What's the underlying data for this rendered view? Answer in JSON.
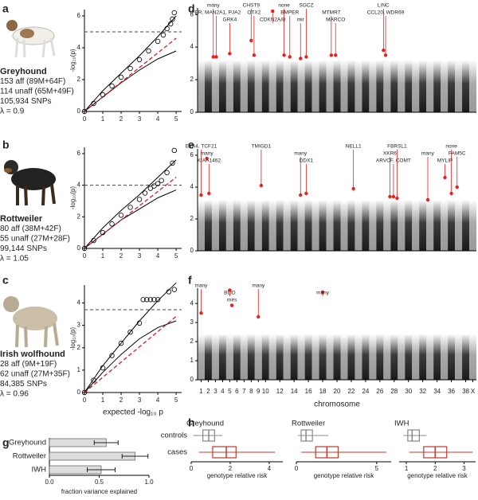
{
  "chart_data": [
    {
      "type": "qq",
      "letter": "a",
      "breed": "Greyhound",
      "info": [
        "153 aff (89M+64F)",
        "114 unaff (65M+49F)",
        "105,934 SNPs",
        "λ = 0.9"
      ],
      "ylabel": "-log₁₀(p)",
      "xlim": [
        0,
        5.3
      ],
      "ylim": [
        0,
        6.4
      ],
      "xticks": [
        0,
        1,
        2,
        3,
        4,
        5
      ],
      "yticks": [
        0,
        2,
        4,
        6
      ],
      "threshold": 5,
      "observed": {
        "x": [
          0,
          0.5,
          1,
          1.5,
          2,
          2.5,
          3,
          3.5,
          4,
          4.3,
          4.5,
          4.7,
          4.8,
          4.9
        ],
        "values": [
          0,
          0.5,
          1.05,
          1.6,
          2.15,
          2.7,
          3.25,
          3.8,
          4.4,
          4.8,
          5.2,
          5.5,
          5.8,
          6.2
        ]
      },
      "expected": {
        "x": [
          0,
          5
        ],
        "values": [
          0,
          4.6
        ],
        "color": "#d62020"
      },
      "ci_upper": {
        "x": [
          0,
          1,
          2,
          3,
          4,
          5
        ],
        "values": [
          0,
          1.3,
          2.4,
          3.5,
          4.7,
          6.0
        ]
      },
      "ci_lower": {
        "x": [
          0,
          1,
          2,
          3,
          4,
          5
        ],
        "values": [
          0,
          0.9,
          1.8,
          2.6,
          3.3,
          3.8
        ]
      }
    },
    {
      "type": "qq",
      "letter": "b",
      "breed": "Rottweiler",
      "info": [
        "80 aff (38M+42F)",
        "55 unaff (27M+28F)",
        "99,144 SNPs",
        "λ = 1.05"
      ],
      "ylabel": "-log₁₀(p)",
      "xlim": [
        0,
        5.3
      ],
      "ylim": [
        0,
        6.4
      ],
      "xticks": [
        0,
        1,
        2,
        3,
        4,
        5
      ],
      "yticks": [
        0,
        2,
        4,
        6
      ],
      "threshold": 4,
      "observed": {
        "x": [
          0,
          0.5,
          1,
          1.5,
          2,
          2.5,
          3,
          3.3,
          3.6,
          3.8,
          4.0,
          4.2,
          4.5,
          4.8,
          4.9
        ],
        "values": [
          0,
          0.5,
          1.0,
          1.55,
          2.1,
          2.6,
          3.1,
          3.5,
          3.8,
          3.95,
          4.1,
          4.3,
          4.8,
          5.4,
          6.2
        ]
      },
      "expected": {
        "x": [
          0,
          5
        ],
        "values": [
          0,
          4.5
        ],
        "color": "#d62020"
      },
      "ci_upper": {
        "x": [
          0,
          1,
          2,
          3,
          4,
          5
        ],
        "values": [
          0,
          1.3,
          2.4,
          3.4,
          4.5,
          5.6
        ]
      },
      "ci_lower": {
        "x": [
          0,
          1,
          2,
          3,
          4,
          5
        ],
        "values": [
          0,
          0.9,
          1.8,
          2.5,
          3.2,
          3.7
        ]
      }
    },
    {
      "type": "qq",
      "letter": "c",
      "breed": "Irish wolfhound",
      "info": [
        "28 aff (9M+19F)",
        "62 unaff (27M+35F)",
        "84,385 SNPs",
        "λ = 0.96"
      ],
      "ylabel": "-log₁₀(p)",
      "xlabel": "expected -log₁₀ p",
      "xlim": [
        0,
        5.3
      ],
      "ylim": [
        0,
        4.8
      ],
      "xticks": [
        0,
        1,
        2,
        3,
        4,
        5
      ],
      "yticks": [
        0,
        1,
        2,
        3,
        4
      ],
      "threshold": 3.7,
      "observed": {
        "x": [
          0,
          0.5,
          1,
          1.5,
          2,
          2.5,
          3,
          3.2,
          3.4,
          3.6,
          3.8,
          4.0,
          4.6,
          4.9
        ],
        "values": [
          0,
          0.55,
          1.1,
          1.65,
          2.2,
          2.7,
          3.1,
          4.15,
          4.15,
          4.15,
          4.15,
          4.15,
          4.5,
          4.6
        ]
      },
      "expected": {
        "x": [
          0,
          5
        ],
        "values": [
          0,
          3.4
        ],
        "color": "#d62020"
      },
      "ci_upper": {
        "x": [
          0,
          1,
          2,
          3,
          4,
          5
        ],
        "values": [
          0,
          1.2,
          2.2,
          3.2,
          4.1,
          4.9
        ]
      },
      "ci_lower": {
        "x": [
          0,
          1,
          2,
          3,
          4,
          5
        ],
        "values": [
          0,
          0.9,
          1.7,
          2.4,
          2.9,
          3.2
        ]
      }
    },
    {
      "type": "manhattan",
      "letter": "d",
      "xlim": [
        0.5,
        39.5
      ],
      "ylim": [
        0,
        6.4
      ],
      "yticks": [
        0,
        2,
        4,
        6
      ],
      "color": "#e8211d",
      "peaks": [
        {
          "chrom": 2.7,
          "value": 3.4,
          "label": "many"
        },
        {
          "chrom": 3.1,
          "value": 3.4,
          "label": "FER, MAN2A1, PJA2"
        },
        {
          "chrom": 5,
          "value": 3.6,
          "label": "GRK4"
        },
        {
          "chrom": 8,
          "value": 4.4,
          "label": "CHST9"
        },
        {
          "chrom": 8.4,
          "value": 3.5,
          "label": "OTX2"
        },
        {
          "chrom": 11,
          "value": 6.2,
          "label": "CDKN2A/B"
        },
        {
          "chrom": 12.6,
          "value": 3.5,
          "label": "none"
        },
        {
          "chrom": 13.4,
          "value": 3.4,
          "label": "BMPER"
        },
        {
          "chrom": 14.9,
          "value": 3.3,
          "label": "mir"
        },
        {
          "chrom": 15.7,
          "value": 3.4,
          "label": "SGCZ"
        },
        {
          "chrom": 19.2,
          "value": 3.5,
          "label": "MTMR7"
        },
        {
          "chrom": 19.8,
          "value": 3.5,
          "label": "MARCO"
        },
        {
          "chrom": 26.5,
          "value": 3.8,
          "label": "LINC"
        },
        {
          "chrom": 26.8,
          "value": 3.5,
          "label": "CCL20, WDR69"
        }
      ]
    },
    {
      "type": "manhattan",
      "letter": "e",
      "xlim": [
        0.5,
        39.5
      ],
      "ylim": [
        0,
        6.4
      ],
      "yticks": [
        0,
        2,
        4,
        6
      ],
      "color": "#e8211d",
      "peaks": [
        {
          "chrom": 1,
          "value": 3.5,
          "label": "EYA4, TCF21"
        },
        {
          "chrom": 1.8,
          "value": 5.8,
          "label": "many"
        },
        {
          "chrom": 2.1,
          "value": 3.6,
          "label": "KIAA1462"
        },
        {
          "chrom": 9.4,
          "value": 4.1,
          "label": "TMIGD1"
        },
        {
          "chrom": 14.9,
          "value": 3.5,
          "label": "many"
        },
        {
          "chrom": 15.7,
          "value": 3.6,
          "label": "DDX1"
        },
        {
          "chrom": 22.3,
          "value": 3.9,
          "label": "NELL1"
        },
        {
          "chrom": 27.4,
          "value": 3.4,
          "label": "XKR6"
        },
        {
          "chrom": 27.9,
          "value": 3.4,
          "label": "ARVCF, COMT"
        },
        {
          "chrom": 28.4,
          "value": 3.3,
          "label": "FBRSL1"
        },
        {
          "chrom": 32.7,
          "value": 3.2,
          "label": "many"
        },
        {
          "chrom": 35.1,
          "value": 4.6,
          "label": "MYLIP"
        },
        {
          "chrom": 36,
          "value": 3.6,
          "label": "none"
        },
        {
          "chrom": 36.8,
          "value": 4.0,
          "label": "FAM5C"
        }
      ]
    },
    {
      "type": "manhattan",
      "letter": "f",
      "xlabel": "chromosome",
      "xlim": [
        0.5,
        39.5
      ],
      "ylim": [
        0,
        4.8
      ],
      "yticks": [
        0,
        1,
        2,
        3,
        4
      ],
      "color": "#e8211d",
      "xticks": [
        1,
        2,
        3,
        4,
        5,
        6,
        7,
        8,
        9,
        10,
        12,
        14,
        16,
        18,
        20,
        22,
        24,
        26,
        28,
        30,
        32,
        34,
        36,
        38,
        {
          "value": 39,
          "label": "X"
        }
      ],
      "peaks": [
        {
          "chrom": 1,
          "value": 3.5,
          "label": "many"
        },
        {
          "chrom": 5,
          "value": 4.7,
          "label": "BLID"
        },
        {
          "chrom": 5.3,
          "value": 3.9,
          "label": "mirs"
        },
        {
          "chrom": 9,
          "value": 3.3,
          "label": "many"
        },
        {
          "chrom": 18,
          "value": 4.6,
          "label": "many"
        }
      ]
    },
    {
      "type": "hbar",
      "letter": "g",
      "categories": [
        "Greyhound",
        "Rottweiler",
        "IWH"
      ],
      "values": [
        0.57,
        0.86,
        0.52
      ],
      "errors": [
        0.12,
        0.13,
        0.14
      ],
      "xlabel": "fraction variance explained",
      "xlim": [
        0,
        1.0
      ],
      "xticks": [
        {
          "value": 0,
          "label": "0.0"
        },
        0.5,
        {
          "value": 1,
          "label": "1.0"
        }
      ],
      "color": "#dddddd"
    },
    {
      "type": "box",
      "letter": "h",
      "title": "Greyhound",
      "categories": [
        "controls",
        "cases"
      ],
      "xlabel": "genotype relative risk",
      "xlim": [
        0,
        4.7
      ],
      "xticks": [
        0,
        2,
        4
      ],
      "colors": [
        "#888888",
        "#c0392b"
      ],
      "boxes": [
        {
          "low": 0.1,
          "q1": 0.6,
          "median": 0.9,
          "q3": 1.2,
          "high": 1.6
        },
        {
          "low": 0.4,
          "q1": 1.1,
          "median": 1.8,
          "q3": 2.3,
          "high": 4.3
        }
      ]
    },
    {
      "type": "box",
      "title": "Rottweiler",
      "xlabel": "genotype relative risk",
      "xlim": [
        0,
        5.9
      ],
      "xticks": [
        0,
        5
      ],
      "colors": [
        "#888888",
        "#c0392b"
      ],
      "boxes": [
        {
          "low": 0.1,
          "q1": 0.3,
          "median": 0.6,
          "q3": 1.0,
          "high": 2.0
        },
        {
          "low": 0.3,
          "q1": 1.2,
          "median": 1.9,
          "q3": 2.6,
          "high": 5.6
        }
      ]
    },
    {
      "type": "box",
      "title": "IWH",
      "xlabel": "genotype relative risk",
      "xlim": [
        0.75,
        3.4
      ],
      "xticks": [
        1,
        2,
        3
      ],
      "colors": [
        "#888888",
        "#c0392b"
      ],
      "boxes": [
        {
          "low": 0.9,
          "q1": 1.05,
          "median": 1.2,
          "q3": 1.45,
          "high": 1.7
        },
        {
          "low": 1.1,
          "q1": 1.6,
          "median": 2.0,
          "q3": 2.4,
          "high": 3.3
        }
      ]
    }
  ]
}
